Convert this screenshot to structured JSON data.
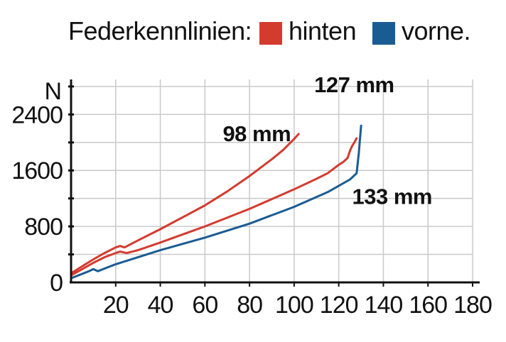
{
  "chart_data": {
    "type": "line",
    "title": "Federkennlinien:",
    "xlabel": "",
    "ylabel": "N",
    "xlim": [
      0,
      180
    ],
    "ylim": [
      0,
      2900
    ],
    "x_ticks": [
      20,
      40,
      60,
      80,
      100,
      120,
      140,
      160,
      180
    ],
    "y_ticks": [
      0,
      800,
      1600,
      2400
    ],
    "grid": true,
    "legend": [
      {
        "label": "hinten",
        "color": "#d33b2f"
      },
      {
        "label": "vorne.",
        "color": "#1b5b93"
      }
    ],
    "series": [
      {
        "name": "hinten 98 mm",
        "color": "#d33b2f",
        "x": [
          0,
          5,
          10,
          15,
          20,
          22,
          24,
          30,
          40,
          50,
          60,
          70,
          80,
          90,
          95,
          100,
          102
        ],
        "y": [
          130,
          230,
          330,
          420,
          500,
          520,
          500,
          600,
          760,
          930,
          1100,
          1300,
          1520,
          1760,
          1890,
          2050,
          2120
        ]
      },
      {
        "name": "hinten 127 mm",
        "color": "#d33b2f",
        "x": [
          0,
          5,
          10,
          15,
          20,
          22,
          25,
          30,
          40,
          60,
          80,
          100,
          110,
          115,
          120,
          122,
          124,
          125,
          126,
          127,
          128
        ],
        "y": [
          100,
          190,
          280,
          360,
          420,
          440,
          420,
          460,
          570,
          800,
          1050,
          1330,
          1480,
          1560,
          1680,
          1720,
          1780,
          1880,
          1950,
          2000,
          2060
        ]
      },
      {
        "name": "vorne 133 mm",
        "color": "#1b5b93",
        "x": [
          0,
          4,
          8,
          10,
          12,
          20,
          40,
          60,
          80,
          100,
          115,
          125,
          128,
          129,
          130
        ],
        "y": [
          60,
          110,
          160,
          190,
          160,
          260,
          460,
          640,
          840,
          1080,
          1290,
          1470,
          1560,
          1850,
          2240
        ]
      }
    ],
    "annotations": [
      {
        "text": "98 mm",
        "x": 68,
        "y": 2020
      },
      {
        "text": "127 mm",
        "x": 109,
        "y": 2720
      },
      {
        "text": "133 mm",
        "x": 126,
        "y": 1120
      }
    ]
  }
}
